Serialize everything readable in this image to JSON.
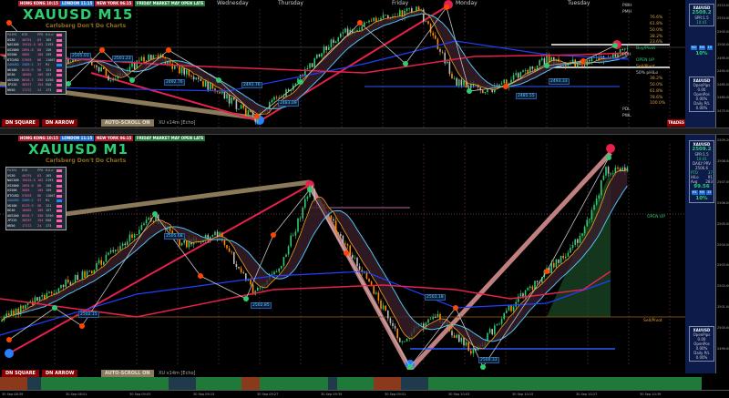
{
  "colors": {
    "title": "#2ecc71",
    "bull": "#2ecc71",
    "bear": "#ff8c00",
    "ma_red": "#e8204c",
    "ma_blue": "#2040ff",
    "ma_orange": "#f0a020",
    "zigzag": "#c0c0c0",
    "channel": "#8a7a5a",
    "panel_bg": "#0d1b4a"
  },
  "sessions": [
    {
      "label": "HONG KONG 10:15",
      "color": "#b01c2c"
    },
    {
      "label": "LONDON 11:15",
      "color": "#1a6fd6"
    },
    {
      "label": "NEW YORK 06:15",
      "color": "#b01c2c"
    },
    {
      "label": "FRIDAY MARKET MAY OPEN LATE",
      "color": "#1f7a3a"
    }
  ],
  "top": {
    "title": "XAUUSD M15",
    "subtitle": "Carlsberg Don't Do Charts",
    "days": [
      "Wednesday",
      "Thursday",
      "Friday",
      "Monday",
      "Tuesday"
    ],
    "price_labels": [
      "2505.01",
      "2501.23",
      "2492.76",
      "2491.76",
      "2483.09",
      "2485.55",
      "2493.33"
    ],
    "fib_labels": [
      "PWH",
      "PMH",
      "76.6%",
      "61.8%",
      "50.0%",
      "38.2%",
      "23.6%",
      "Buy/Pivot",
      "PDH",
      "OPEN UP",
      "Sell/Pivot",
      "50% pHiLo",
      "38.2%",
      "50.0%",
      "61.8%",
      "78.6%",
      "100.0%",
      "PDL",
      "PWL"
    ],
    "trades_label": "TRADES"
  },
  "bottom": {
    "title": "XAUUSD M1",
    "subtitle": "Carlsberg Don't Do Charts",
    "price_labels": [
      "2505.68",
      "2503.18",
      "2502.85",
      "2500.33",
      "2502.15"
    ],
    "fib_labels": [
      "OPEN UP",
      "Sell/Pivot"
    ]
  },
  "buttons": {
    "square": "DN SQUARE",
    "arrow": "DN ARROW",
    "autoscroll": "AUTO-SCROLL ON",
    "version": "XU v14m [Echo]"
  },
  "table": {
    "headers": [
      "M1",
      "M5",
      "M15",
      "H1",
      "H4",
      "D1",
      "W1",
      "MN"
    ],
    "cols": [
      "PAIRS",
      "BID",
      "PPD",
      "HiLo",
      "S"
    ],
    "rows": [
      [
        "US30",
        "40791",
        "63",
        "165"
      ],
      [
        "NAS100",
        "19415.5",
        "162",
        "2193"
      ],
      [
        "US2000",
        "2094.8",
        "88",
        "158"
      ],
      [
        "US500",
        "5605",
        "105",
        "159"
      ],
      [
        "BTCUSD",
        "57693",
        "86",
        "11067"
      ],
      [
        "XAUUSD",
        "2509.2",
        "37",
        "91"
      ],
      [
        "UK100",
        "8219.9",
        "58",
        "121"
      ],
      [
        "DE40",
        "18402",
        "105",
        "157"
      ],
      [
        "AUS200",
        "8018.7",
        "350",
        "5250"
      ],
      [
        "JP225",
        "36537",
        "154",
        "550"
      ],
      [
        "HK50",
        "17172",
        "24",
        "173"
      ]
    ],
    "highlight": "XAUUSD"
  },
  "info": {
    "symbol": "XAUUSD",
    "price": "2509.2",
    "spread": "SPR:1.5",
    "time": "10:41",
    "daily_prv_label": "DAILY PRV",
    "daily_prv": "2506.6",
    "ptd_label": "PTD",
    "ptd": "37",
    "hilo_label": "HiLo",
    "hilo": "91",
    "avg_label": "Avg",
    "avg": "283",
    "pct": "99.56",
    "tfs": [
      "M1",
      "M5",
      "15"
    ],
    "pct2": "10%"
  },
  "pl": {
    "symbol": "XAUUSD",
    "open_pips_label": "OpenPips",
    "open_pips": "0.00",
    "open_pos_label": "OpenPos",
    "open_pos": "0.00%",
    "daily_pl_label": "Daily P/L",
    "daily_pl": "0.00%"
  },
  "axis_top": [
    "2515.00",
    "2510.00",
    "2505.00",
    "2500.00",
    "2495.00",
    "2490.00",
    "2485.00",
    "2480.00",
    "2475.00"
  ],
  "axis_bot": [
    "2509.20",
    "2508.00",
    "2507.00",
    "2506.00",
    "2505.00",
    "2504.00",
    "2503.00",
    "2502.00",
    "2501.00",
    "2500.00",
    "2499.00"
  ],
  "time_labels": [
    "30 Sep 08:39",
    "30 Sep 08:51",
    "30 Sep 09:03",
    "30 Sep 09:15",
    "30 Sep 09:27",
    "30 Sep 09:39",
    "30 Sep 09:51",
    "30 Sep 10:03",
    "30 Sep 10:15",
    "30 Sep 10:27",
    "30 Sep 10:39"
  ]
}
